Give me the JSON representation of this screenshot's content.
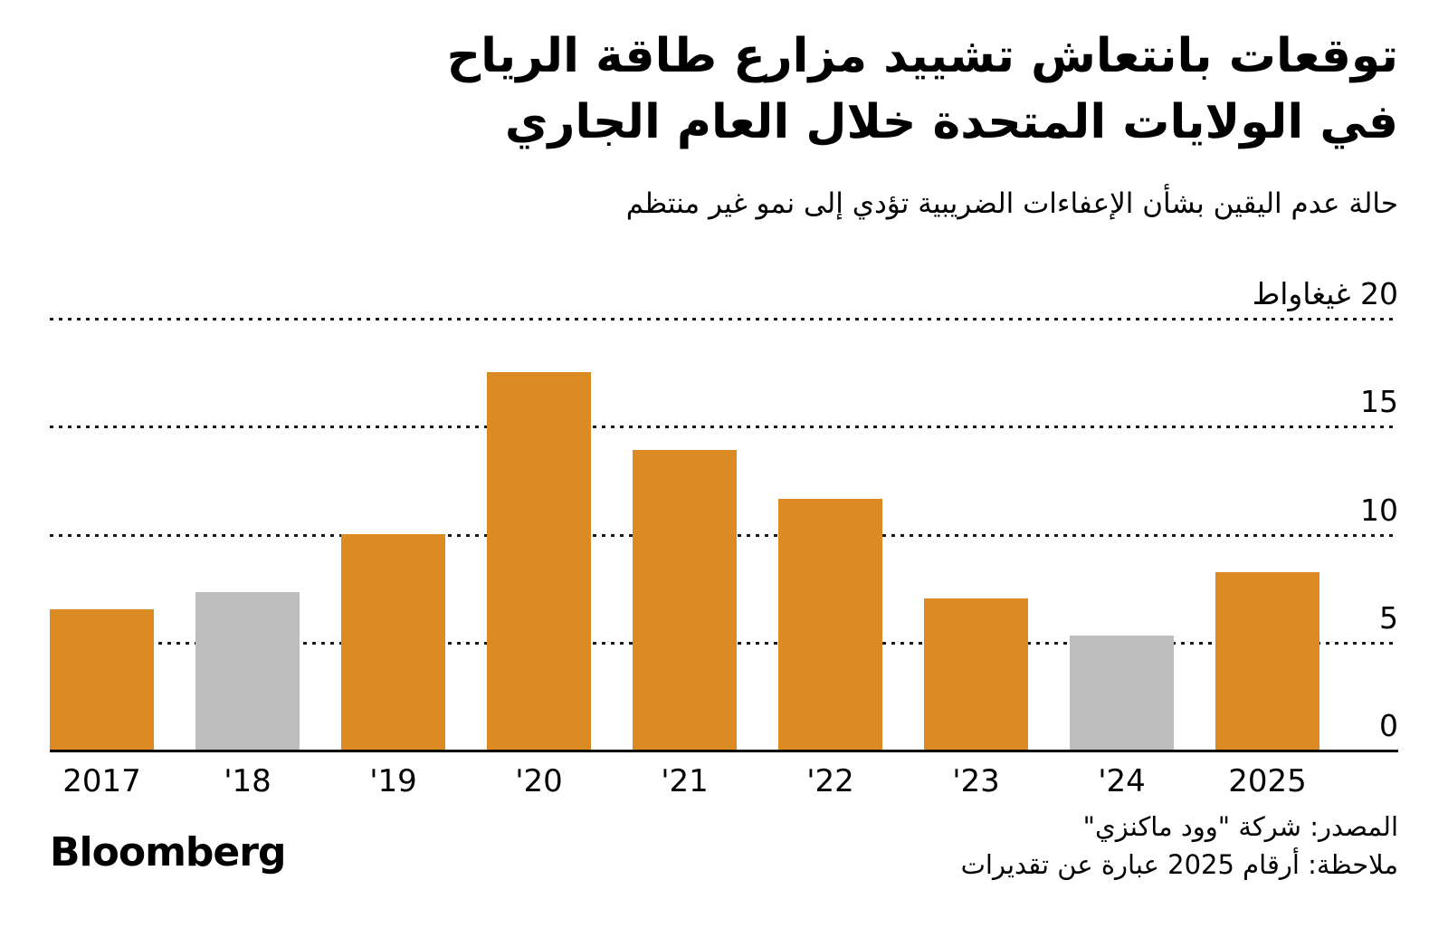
{
  "header": {
    "title_line1": "توقعات بانتعاش تشييد مزارع طاقة الرياح",
    "title_line2": "في الولايات المتحدة خلال العام الجاري",
    "subtitle": "حالة عدم اليقين بشأن الإعفاءات الضريبية تؤدي إلى نمو غير منتظم"
  },
  "chart_data": {
    "type": "bar",
    "title": "توقعات بانتعاش تشييد مزارع طاقة الرياح في الولايات المتحدة خلال العام الجاري",
    "subtitle": "حالة عدم اليقين بشأن الإعفاءات الضريبية تؤدي إلى نمو غير منتظم",
    "unit_label": "20 غيغاواط",
    "categories": [
      "2017",
      "'18",
      "'19",
      "'20",
      "'21",
      "'22",
      "'23",
      "'24",
      "2025"
    ],
    "values": [
      6.5,
      7.3,
      10,
      17.5,
      13.9,
      11.6,
      7,
      5.3,
      8.2
    ],
    "bar_colors": [
      "#DC8A23",
      "#BEBEBE",
      "#DC8A23",
      "#DC8A23",
      "#DC8A23",
      "#DC8A23",
      "#DC8A23",
      "#BEBEBE",
      "#DC8A23"
    ],
    "accent_color": "#DC8A23",
    "muted_color": "#BEBEBE",
    "ylim": [
      0,
      20
    ],
    "yticks": [
      0,
      5,
      10,
      15,
      20
    ],
    "ytick_labels": [
      "0",
      "5",
      "10",
      "15",
      "20 غيغاواط"
    ],
    "grid": "horizontal-dotted",
    "legend": "none"
  },
  "footer": {
    "source": "المصدر: شركة \"وود ماكنزي\"",
    "note": "ملاحظة: أرقام 2025 عبارة عن تقديرات",
    "logo": "Bloomberg"
  }
}
